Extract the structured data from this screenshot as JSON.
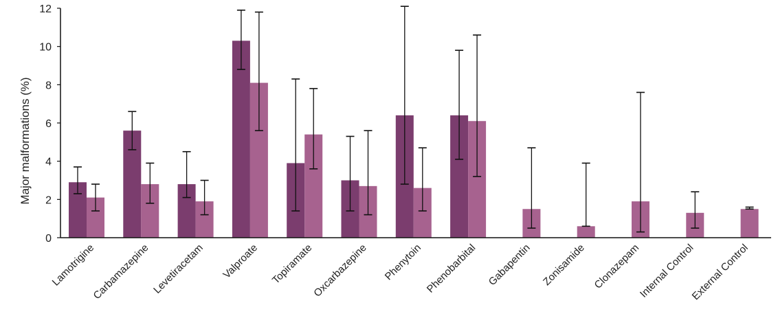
{
  "chart_data": {
    "type": "bar",
    "ylabel": "Major malformations (%)",
    "ylim": [
      0,
      12
    ],
    "yticks": [
      0,
      2,
      4,
      6,
      8,
      10,
      12
    ],
    "grid": false,
    "categories": [
      "Lamotrigine",
      "Carbamazepine",
      "Levetiracetam",
      "Valproate",
      "Topiramate",
      "Oxcarbazepine",
      "Phenytoin",
      "Phenobarbital",
      "Gabapentin",
      "Zonisamide",
      "Clonazepam",
      "Internal Control",
      "External Control"
    ],
    "series": [
      {
        "color": "#7b3d6e",
        "values": [
          2.9,
          5.6,
          2.8,
          10.3,
          3.9,
          3.0,
          6.4,
          6.4,
          null,
          null,
          null,
          null,
          null
        ],
        "error_low": [
          2.3,
          4.6,
          2.1,
          8.8,
          1.4,
          1.4,
          2.8,
          4.1,
          null,
          null,
          null,
          null,
          null
        ],
        "error_high": [
          3.7,
          6.6,
          4.5,
          11.9,
          8.3,
          5.3,
          12.1,
          9.8,
          null,
          null,
          null,
          null,
          null
        ]
      },
      {
        "color": "#a7628f",
        "values": [
          2.1,
          2.8,
          1.9,
          8.1,
          5.4,
          2.7,
          2.6,
          6.1,
          1.5,
          0.6,
          1.9,
          1.3,
          1.5
        ],
        "error_low": [
          1.4,
          1.8,
          1.2,
          5.6,
          3.6,
          1.2,
          1.4,
          3.2,
          0.5,
          0.6,
          0.3,
          0.5,
          1.5
        ],
        "error_high": [
          2.8,
          3.9,
          3.0,
          11.8,
          7.8,
          5.6,
          4.7,
          10.6,
          4.7,
          3.9,
          7.6,
          2.4,
          1.6
        ]
      }
    ]
  }
}
